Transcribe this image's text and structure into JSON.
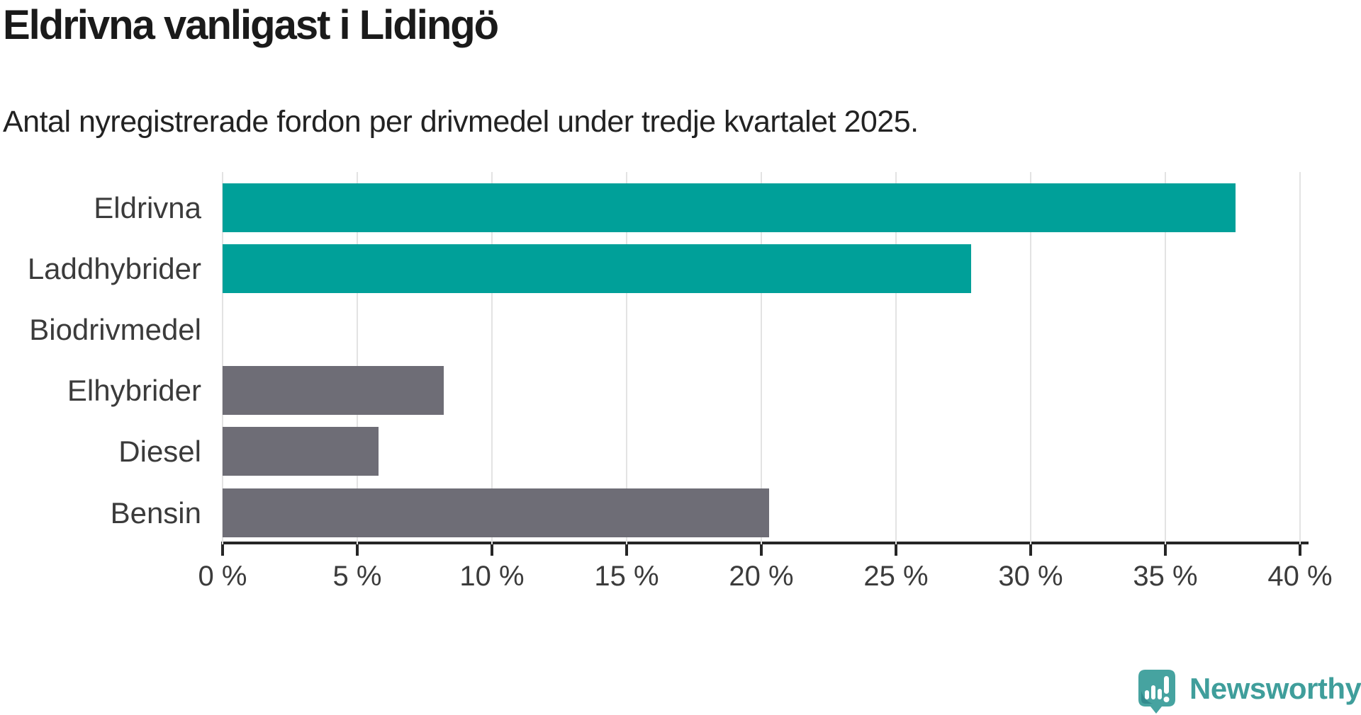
{
  "chart_data": {
    "type": "bar",
    "orientation": "horizontal",
    "title": "Eldrivna vanligast i Lidingö",
    "subtitle": "Antal nyregistrerade fordon per drivmedel under tredje kvartalet 2025.",
    "categories": [
      "Eldrivna",
      "Laddhybrider",
      "Biodrivmedel",
      "Elhybrider",
      "Diesel",
      "Bensin"
    ],
    "values": [
      37.6,
      27.8,
      0,
      8.2,
      5.8,
      20.3
    ],
    "value_unit": "percent",
    "xlim": [
      0,
      40
    ],
    "xticks": [
      0,
      5,
      10,
      15,
      20,
      25,
      30,
      35,
      40
    ],
    "xtick_labels": [
      "0 %",
      "5 %",
      "10 %",
      "15 %",
      "20 %",
      "25 %",
      "30 %",
      "35 %",
      "40 %"
    ],
    "grid": true,
    "legend": false,
    "bar_colors": [
      "#00a099",
      "#00a099",
      "#6e6d76",
      "#6e6d76",
      "#6e6d76",
      "#6e6d76"
    ]
  },
  "colors": {
    "accent_teal": "#00a099",
    "neutral_gray": "#6e6d76",
    "gridline": "#e3e3e3",
    "axis": "#262626",
    "label_text": "#3b3b3b",
    "logo_teal": "#46a3a0",
    "logo_teal_dark": "#338b8e",
    "logo_text": "#3f9e9b"
  },
  "branding": {
    "logo_text": "Newsworthy",
    "logo_icon": "newsworthy-speech-bubble-chart-icon"
  }
}
